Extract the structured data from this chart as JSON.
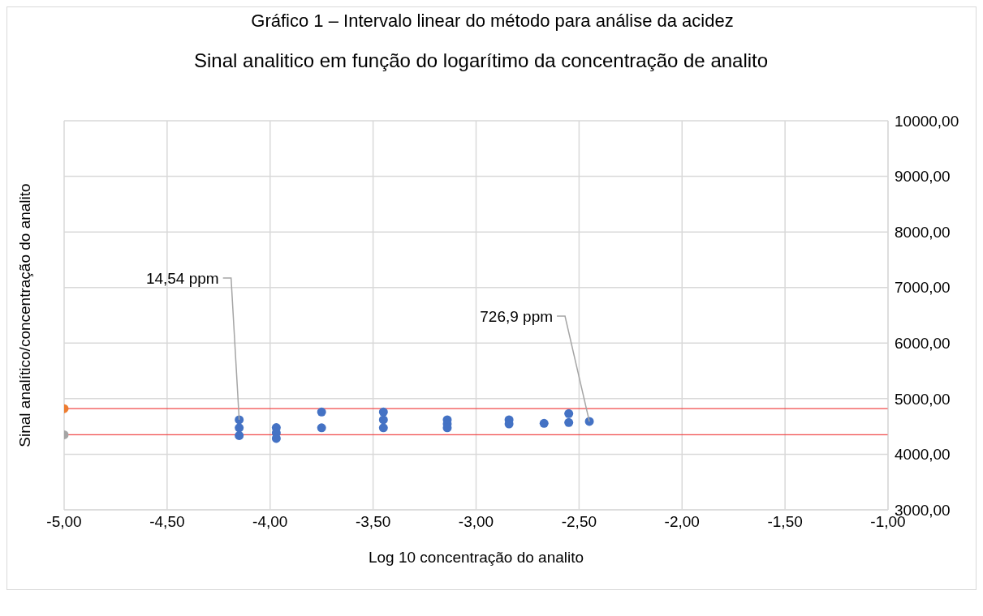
{
  "chart_data": {
    "type": "scatter",
    "title": "Gráfico 1 – Intervalo linear do método para análise da acidez",
    "subtitle": "Sinal analitico em função do logarítimo da concentração de analito",
    "xlabel": "Log 10 concentração do analito",
    "ylabel": "Sinal analítico/concentração do analito",
    "series": [
      {
        "color": "#4472c4",
        "x": [
          -4.15,
          -4.15,
          -4.15,
          -3.97,
          -3.97,
          -3.97,
          -3.75,
          -3.75,
          -3.45,
          -3.45,
          -3.45,
          -3.14,
          -3.14,
          -3.14,
          -2.84,
          -2.84,
          -2.67,
          -2.55,
          -2.55,
          -2.45
        ],
        "values": [
          4620,
          4475,
          4335,
          4480,
          4385,
          4285,
          4760,
          4475,
          4760,
          4620,
          4475,
          4620,
          4545,
          4475,
          4620,
          4545,
          4555,
          4730,
          4570,
          4590
        ]
      },
      {
        "color": "#ed7d31",
        "x": [
          -5
        ],
        "values": [
          4820
        ]
      },
      {
        "color": "#a5a5a5",
        "x": [
          -5
        ],
        "values": [
          4350
        ]
      }
    ],
    "ref_lines": [
      {
        "axis": "y",
        "value": 4820,
        "color": "#f04848"
      },
      {
        "axis": "y",
        "value": 4350,
        "color": "#f04848"
      }
    ],
    "annotations": [
      {
        "text": "14,54 ppm",
        "x": -4.15,
        "y": 4620
      },
      {
        "text": "726,9 ppm",
        "x": -2.45,
        "y": 4590
      }
    ],
    "xlim": [
      -5,
      -1
    ],
    "xticks": [
      {
        "value": -5,
        "label": "-5,00"
      },
      {
        "value": -4.5,
        "label": "-4,50"
      },
      {
        "value": -4,
        "label": "-4,00"
      },
      {
        "value": -3.5,
        "label": "-3,50"
      },
      {
        "value": -3,
        "label": "-3,00"
      },
      {
        "value": -2.5,
        "label": "-2,50"
      },
      {
        "value": -2,
        "label": "-2,00"
      },
      {
        "value": -1.5,
        "label": "-1,50"
      },
      {
        "value": -1,
        "label": "-1,00"
      }
    ],
    "ylim": [
      3000,
      10000
    ],
    "yticks": [
      {
        "value": 3000,
        "label": "3000,00"
      },
      {
        "value": 4000,
        "label": "4000,00"
      },
      {
        "value": 5000,
        "label": "5000,00"
      },
      {
        "value": 6000,
        "label": "6000,00"
      },
      {
        "value": 7000,
        "label": "7000,00"
      },
      {
        "value": 8000,
        "label": "8000,00"
      },
      {
        "value": 9000,
        "label": "9000,00"
      },
      {
        "value": 10000,
        "label": "10000,00"
      }
    ],
    "grid": true,
    "marker": "circle",
    "legend": false
  }
}
